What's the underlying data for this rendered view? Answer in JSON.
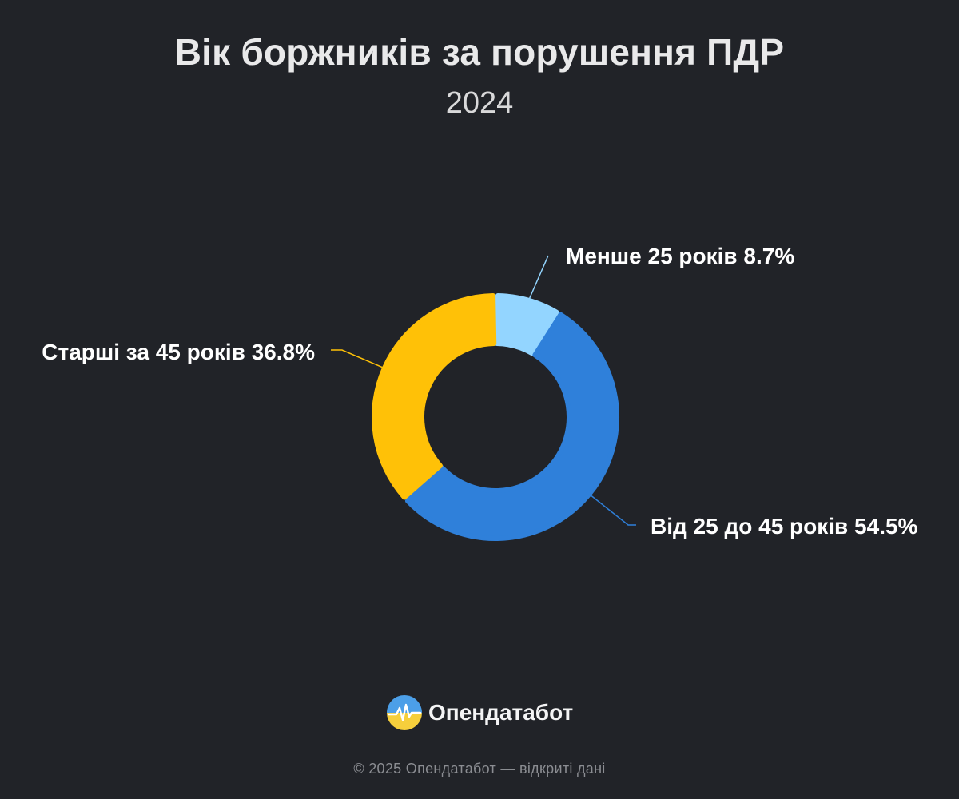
{
  "header": {
    "title": "Вік боржників за порушення ПДР",
    "subtitle": "2024"
  },
  "chart_data": {
    "type": "pie",
    "variant": "donut",
    "title": "Вік боржників за порушення ПДР",
    "subtitle": "2024",
    "unit": "%",
    "legend": "none",
    "slices": [
      {
        "label": "Менше 25 років",
        "value": 8.7,
        "display": "Менше 25 років 8.7%",
        "color": "#93d5ff"
      },
      {
        "label": "Від 25 до 45 років",
        "value": 54.5,
        "display": "Від 25 до 45 років 54.5%",
        "color": "#2f80da"
      },
      {
        "label": "Старші за 45 років",
        "value": 36.8,
        "display": "Старші за 45 років 36.8%",
        "color": "#ffc107"
      }
    ]
  },
  "branding": {
    "logo_text": "Опендатабот",
    "logo_icon": "opendatabot-logo-icon"
  },
  "footer": {
    "text": "© 2025 Опендатабот — відкриті дані"
  }
}
